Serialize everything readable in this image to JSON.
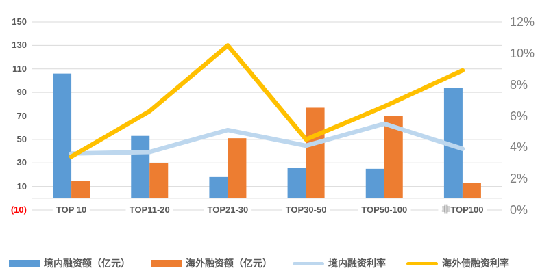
{
  "chart_data": {
    "type": "combo-bar-line",
    "title": "",
    "categories": [
      "TOP 10",
      "TOP11-20",
      "TOP21-30",
      "TOP30-50",
      "TOP50-100",
      "非TOP100"
    ],
    "bar_series": [
      {
        "key": "domestic-financing-amount",
        "name": "境内融资额（亿元）",
        "axis": "left",
        "color": "#5B9BD5",
        "values": [
          106,
          53,
          18,
          26,
          25,
          94
        ]
      },
      {
        "key": "overseas-financing-amount",
        "name": "海外融资额（亿元）",
        "axis": "left",
        "color": "#ED7D31",
        "values": [
          15,
          30,
          51,
          77,
          70,
          13
        ]
      }
    ],
    "line_series": [
      {
        "key": "domestic-financing-rate",
        "name": "境内融资利率",
        "axis": "right",
        "color": "#BDD7EE",
        "values_percent": [
          3.6,
          3.7,
          5.1,
          4.1,
          5.5,
          3.9
        ]
      },
      {
        "key": "overseas-debt-financing-rate",
        "name": "海外债融资利率",
        "axis": "right",
        "color": "#FFC000",
        "values_percent": [
          3.4,
          6.3,
          10.5,
          4.5,
          6.6,
          8.9
        ]
      }
    ],
    "left_axis": {
      "min": -10,
      "max": 150,
      "step": 20,
      "tick_labels_top_to_bottom": [
        "150",
        "130",
        "110",
        "90",
        "70",
        "50",
        "30",
        "10",
        "(10)"
      ],
      "negative_tick_label": "(10)",
      "negative_tick_color": "#FF0000"
    },
    "right_axis": {
      "min": 0,
      "max": 12,
      "step": 2,
      "tick_labels_top_to_bottom": [
        "12%",
        "10%",
        "8%",
        "6%",
        "4%",
        "2%",
        "0%"
      ]
    },
    "grid": true,
    "legend_position": "bottom",
    "style": {
      "grid_color": "#D9D9D9",
      "axis_label_color": "#595959",
      "right_axis_label_color": "#7F7F7F",
      "background": "#FFFFFF"
    }
  }
}
